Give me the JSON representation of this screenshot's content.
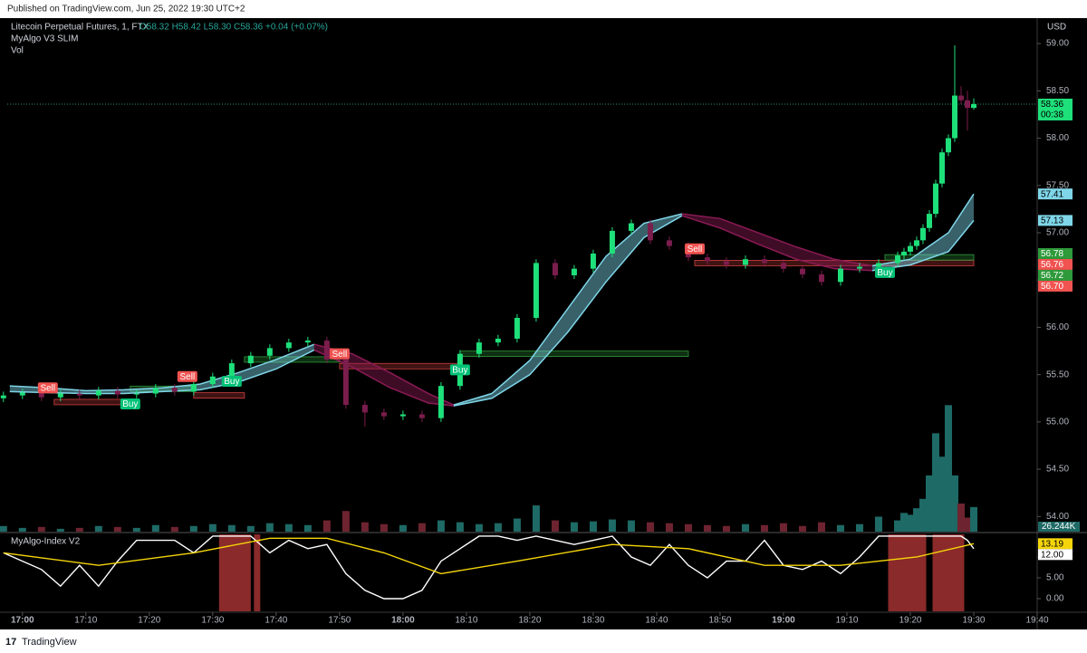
{
  "published": "Published on TradingView.com, Jun 25, 2022 19:30 UTC+2",
  "footer": "TradingView",
  "chart_data": {
    "type": "candlestick",
    "title": "Litecoin Perpetual Futures, 1, FTX",
    "ohlc_text": "O58.32 H58.42 L58.30 C58.36 +0.04 (+0.07%)",
    "indicator_name": "MyAlgo V3 SLIM",
    "volume_name": "Vol",
    "currency": "USD",
    "up_color": "#1ee07a",
    "down_color": "#7b1d4d",
    "xlim": [
      -2.4,
      160
    ],
    "xticks": [
      {
        "value": 0,
        "label": "17:00"
      },
      {
        "value": 10,
        "label": "17:10"
      },
      {
        "value": 20,
        "label": "17:20"
      },
      {
        "value": 30,
        "label": "17:30"
      },
      {
        "value": 40,
        "label": "17:40"
      },
      {
        "value": 50,
        "label": "17:50"
      },
      {
        "value": 60,
        "label": "18:00"
      },
      {
        "value": 70,
        "label": "18:10"
      },
      {
        "value": 80,
        "label": "18:20"
      },
      {
        "value": 90,
        "label": "18:30"
      },
      {
        "value": 100,
        "label": "18:40"
      },
      {
        "value": 110,
        "label": "18:50"
      },
      {
        "value": 120,
        "label": "19:00"
      },
      {
        "value": 130,
        "label": "19:10"
      },
      {
        "value": 140,
        "label": "19:20"
      },
      {
        "value": 150,
        "label": "19:30"
      },
      {
        "value": 160,
        "label": "19:40"
      }
    ],
    "ylim": [
      53.84,
      59.25
    ],
    "yticks": [
      {
        "value": 54,
        "label": "54.00"
      },
      {
        "value": 54.5,
        "label": "54.50"
      },
      {
        "value": 55,
        "label": "55.00"
      },
      {
        "value": 55.5,
        "label": "55.50"
      },
      {
        "value": 56,
        "label": "56.00"
      },
      {
        "value": 56.5,
        "label": "56.50"
      },
      {
        "value": 57,
        "label": "57.00"
      },
      {
        "value": 57.5,
        "label": "57.50"
      },
      {
        "value": 58,
        "label": "58.00"
      },
      {
        "value": 58.5,
        "label": "58.50"
      },
      {
        "value": 59,
        "label": "59.00"
      }
    ],
    "x": [
      -3,
      0,
      3,
      6,
      9,
      12,
      15,
      18,
      21,
      24,
      27,
      30,
      33,
      36,
      39,
      42,
      45,
      48,
      51,
      54,
      57,
      60,
      63,
      66,
      69,
      72,
      75,
      78,
      81,
      84,
      87,
      90,
      93,
      96,
      99,
      102,
      105,
      108,
      111,
      114,
      117,
      120,
      123,
      126,
      129,
      132,
      135,
      138,
      139,
      140,
      141,
      142,
      143,
      144,
      145,
      146,
      147,
      148,
      149,
      150
    ],
    "open": [
      55.25,
      55.28,
      55.31,
      55.26,
      55.3,
      55.28,
      55.33,
      55.29,
      55.3,
      55.36,
      55.32,
      55.4,
      55.48,
      55.62,
      55.7,
      55.78,
      55.84,
      55.86,
      55.66,
      55.18,
      55.1,
      55.06,
      55.08,
      55.04,
      55.38,
      55.72,
      55.84,
      55.88,
      56.1,
      56.68,
      56.55,
      56.62,
      56.78,
      57.02,
      57.1,
      56.92,
      56.86,
      56.74,
      56.7,
      56.66,
      56.72,
      56.68,
      56.62,
      56.56,
      56.48,
      56.62,
      56.64,
      56.68,
      56.76,
      56.8,
      56.86,
      56.92,
      57.05,
      57.2,
      57.52,
      57.85,
      58.0,
      58.45,
      58.4,
      58.32
    ],
    "high": [
      55.32,
      55.35,
      55.35,
      55.34,
      55.34,
      55.37,
      55.37,
      55.34,
      55.4,
      55.4,
      55.44,
      55.52,
      55.66,
      55.74,
      55.82,
      55.88,
      55.9,
      55.9,
      55.7,
      55.22,
      55.14,
      55.12,
      55.12,
      55.42,
      55.76,
      55.88,
      55.92,
      56.14,
      56.72,
      56.72,
      56.66,
      56.82,
      57.06,
      57.14,
      57.14,
      56.96,
      56.9,
      56.78,
      56.74,
      56.76,
      56.76,
      56.72,
      56.66,
      56.6,
      56.66,
      56.68,
      56.72,
      56.8,
      56.84,
      56.9,
      56.96,
      57.09,
      57.24,
      57.56,
      57.89,
      58.04,
      58.98,
      58.55,
      58.5,
      58.42
    ],
    "low": [
      55.21,
      55.24,
      55.22,
      55.22,
      55.24,
      55.24,
      55.25,
      55.25,
      55.26,
      55.28,
      55.28,
      55.36,
      55.44,
      55.58,
      55.66,
      55.74,
      55.8,
      55.62,
      55.14,
      54.95,
      55.02,
      55.02,
      55.0,
      55.0,
      55.34,
      55.68,
      55.8,
      55.84,
      56.06,
      56.51,
      56.51,
      56.58,
      56.74,
      56.98,
      56.88,
      56.82,
      56.7,
      56.66,
      56.62,
      56.62,
      56.64,
      56.58,
      56.52,
      56.44,
      56.44,
      56.58,
      56.6,
      56.64,
      56.72,
      56.76,
      56.82,
      56.88,
      57.01,
      57.16,
      57.48,
      57.81,
      57.96,
      58.36,
      58.08,
      58.3
    ],
    "close": [
      55.28,
      55.31,
      55.26,
      55.3,
      55.28,
      55.33,
      55.29,
      55.3,
      55.36,
      55.32,
      55.4,
      55.48,
      55.62,
      55.7,
      55.78,
      55.84,
      55.86,
      55.66,
      55.18,
      55.1,
      55.06,
      55.08,
      55.04,
      55.38,
      55.72,
      55.84,
      55.88,
      56.1,
      56.68,
      56.55,
      56.62,
      56.78,
      57.02,
      57.1,
      56.92,
      56.86,
      56.74,
      56.7,
      56.66,
      56.72,
      56.68,
      56.62,
      56.56,
      56.48,
      56.62,
      56.64,
      56.68,
      56.76,
      56.8,
      56.86,
      56.92,
      57.05,
      57.2,
      57.52,
      57.85,
      58.0,
      58.45,
      58.4,
      58.32,
      58.36
    ],
    "volume": {
      "up_color": "#1e6a66",
      "down_color": "#6e2430",
      "vlim": [
        0,
        145
      ],
      "values": [
        6,
        4,
        5,
        3,
        4,
        6,
        5,
        4,
        7,
        5,
        6,
        8,
        7,
        6,
        9,
        8,
        7,
        12,
        22,
        10,
        8,
        7,
        9,
        12,
        10,
        8,
        9,
        14,
        28,
        12,
        10,
        11,
        13,
        12,
        10,
        9,
        8,
        7,
        6,
        8,
        7,
        9,
        6,
        10,
        7,
        8,
        16,
        12,
        20,
        18,
        25,
        35,
        60,
        105,
        80,
        135,
        60,
        30,
        15,
        26.244
      ],
      "value_labels": [
        null,
        null,
        null,
        null,
        null,
        null,
        null,
        null,
        null,
        null,
        null,
        null,
        null,
        null,
        null,
        null,
        null,
        null,
        null,
        null,
        null,
        null,
        null,
        null,
        null,
        null,
        null,
        null,
        null,
        null,
        null,
        null,
        null,
        null,
        null,
        null,
        null,
        null,
        null,
        null,
        null,
        null,
        null,
        null,
        null,
        null,
        null,
        null,
        null,
        null,
        null,
        null,
        null,
        null,
        null,
        null,
        null,
        null,
        null,
        "26.244K"
      ]
    },
    "ribbons": [
      {
        "color": "#7ed6e8",
        "x": [
          -2,
          4,
          10,
          16,
          22,
          28,
          34,
          40,
          46
        ],
        "upper": [
          55.38,
          55.36,
          55.33,
          55.34,
          55.36,
          55.4,
          55.52,
          55.66,
          55.82
        ],
        "lower": [
          55.32,
          55.31,
          55.3,
          55.3,
          55.32,
          55.34,
          55.42,
          55.56,
          55.76
        ]
      },
      {
        "color": "#8b1a55",
        "x": [
          46,
          52,
          58,
          64,
          68
        ],
        "upper": [
          55.82,
          55.72,
          55.52,
          55.3,
          55.18
        ],
        "lower": [
          55.76,
          55.58,
          55.36,
          55.2,
          55.17
        ]
      },
      {
        "color": "#7ed6e8",
        "x": [
          68,
          74,
          80,
          86,
          92,
          98,
          104
        ],
        "upper": [
          55.18,
          55.3,
          55.65,
          56.2,
          56.75,
          57.1,
          57.2
        ],
        "lower": [
          55.17,
          55.25,
          55.5,
          55.95,
          56.48,
          56.95,
          57.18
        ]
      },
      {
        "color": "#8b1a55",
        "x": [
          104,
          110,
          116,
          122,
          128,
          134
        ],
        "upper": [
          57.2,
          57.15,
          57.0,
          56.85,
          56.72,
          56.65
        ],
        "lower": [
          57.18,
          57.05,
          56.88,
          56.72,
          56.62,
          56.6
        ]
      },
      {
        "color": "#7ed6e8",
        "x": [
          134,
          140,
          146,
          150
        ],
        "upper": [
          56.65,
          56.72,
          57.0,
          57.41
        ],
        "lower": [
          56.6,
          56.66,
          56.8,
          57.13
        ]
      }
    ],
    "levels": [
      {
        "color": "#d04040",
        "x": [
          5,
          17
        ],
        "y": 55.21
      },
      {
        "color": "#2e9a3a",
        "x": [
          17,
          27
        ],
        "y": 55.35
      },
      {
        "color": "#d04040",
        "x": [
          27,
          35
        ],
        "y": 55.28
      },
      {
        "color": "#2e9a3a",
        "x": [
          35,
          50
        ],
        "y": 55.66
      },
      {
        "color": "#d04040",
        "x": [
          50,
          69
        ],
        "y": 55.59
      },
      {
        "color": "#2e9a3a",
        "x": [
          69,
          105
        ],
        "y": 55.72
      },
      {
        "color": "#d04040",
        "x": [
          106,
          150
        ],
        "y": 56.68
      },
      {
        "color": "#2e9a3a",
        "x": [
          136,
          150
        ],
        "y": 56.74
      }
    ],
    "signals": [
      {
        "label": "Sell",
        "x": 4,
        "y": 55.36,
        "color": "#f05350"
      },
      {
        "label": "Buy",
        "x": 17,
        "y": 55.19,
        "color": "#00c277"
      },
      {
        "label": "Sell",
        "x": 26,
        "y": 55.48,
        "color": "#f05350"
      },
      {
        "label": "Buy",
        "x": 33,
        "y": 55.43,
        "color": "#00c277"
      },
      {
        "label": "Sell",
        "x": 50,
        "y": 55.72,
        "color": "#f05350"
      },
      {
        "label": "Buy",
        "x": 69,
        "y": 55.55,
        "color": "#00c277"
      },
      {
        "label": "Sell",
        "x": 106,
        "y": 56.83,
        "color": "#f05350"
      },
      {
        "label": "Buy",
        "x": 136,
        "y": 56.58,
        "color": "#00c277"
      }
    ],
    "price_labels": [
      {
        "value": 58.36,
        "color": "#1ee07a",
        "countdown": "00:38"
      },
      {
        "value": 57.41,
        "color": "#7ed6e8"
      },
      {
        "value": 57.13,
        "color": "#7ed6e8"
      },
      {
        "value": 56.78,
        "color": "#2e9a3a"
      },
      {
        "value": 56.76,
        "color": "#f05350"
      },
      {
        "value": 56.72,
        "color": "#2e9a3a"
      },
      {
        "value": 56.7,
        "label": "56.70",
        "color": "#f05350"
      }
    ],
    "index": {
      "title": "MyAlgo-Index V2",
      "ylim": [
        -3.04,
        15.43
      ],
      "yticks": [
        {
          "value": 0,
          "label": "0.00"
        },
        {
          "value": 5,
          "label": "5.00"
        },
        {
          "value": 10,
          "label": "10.00"
        }
      ],
      "highlight_color": "#8b2a2a",
      "highlights": [
        [
          31,
          36
        ],
        [
          36.5,
          37.5
        ],
        [
          136.5,
          142.5
        ],
        [
          143.5,
          148.5
        ]
      ],
      "series": [
        {
          "color": "#ffffff",
          "values": [
            11,
            9,
            7,
            3,
            8,
            3,
            9,
            14,
            14,
            14,
            11,
            15,
            15,
            15,
            11,
            14,
            12,
            13,
            6,
            2,
            0,
            0,
            2,
            9,
            12,
            15,
            15,
            14,
            15,
            14,
            13,
            14,
            15,
            10,
            8,
            13,
            8,
            5,
            9,
            9,
            14,
            8,
            7,
            9,
            6,
            10,
            15,
            15,
            15,
            15,
            15,
            15,
            15,
            15,
            15,
            15,
            15,
            15,
            14,
            12
          ]
        },
        {
          "color": "#f5d50a",
          "x": [
            -3,
            12,
            27,
            39,
            48,
            57,
            66,
            78,
            93,
            105,
            117,
            129,
            141,
            150
          ],
          "values": [
            11,
            8,
            11,
            14.5,
            14.5,
            11,
            6,
            9,
            13,
            12,
            8,
            8,
            10,
            13.19
          ]
        }
      ],
      "labels": [
        {
          "value": 13.19,
          "color": "#f5d50a"
        },
        {
          "value": 12,
          "label": "12.00",
          "color": "#ffffff"
        }
      ]
    }
  }
}
